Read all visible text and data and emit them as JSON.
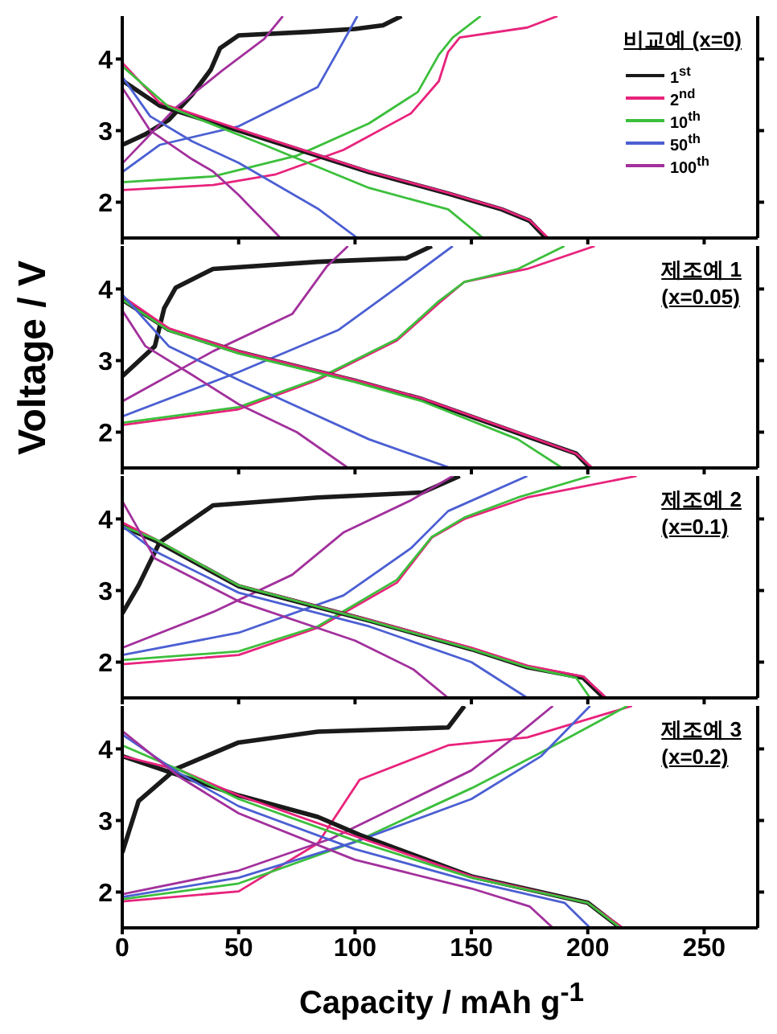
{
  "chart_data": [
    {
      "type": "line",
      "title": "비교예 (x=0)",
      "xlim": [
        0,
        273
      ],
      "xticks": [
        0,
        50,
        100,
        150,
        200,
        250
      ],
      "ylim": [
        1.5,
        4.6
      ],
      "yticks": [
        2,
        3,
        4
      ],
      "tick_labels": "y",
      "legend": "top right",
      "series": [
        {
          "name": "1$^{st}$",
          "color": "#1a1a1a",
          "x": [
            0,
            10,
            20,
            30,
            38,
            42,
            50,
            80,
            100,
            112,
            120
          ],
          "values": [
            2.8,
            2.95,
            3.15,
            3.5,
            3.85,
            4.15,
            4.33,
            4.38,
            4.42,
            4.47,
            4.6
          ]
        },
        {
          "name": "2$^{nd}$",
          "color": "#e8237c",
          "x": [
            0,
            39,
            66,
            95,
            124,
            136,
            140,
            145,
            174,
            187
          ],
          "values": [
            2.17,
            2.24,
            2.39,
            2.73,
            3.24,
            3.69,
            4.1,
            4.3,
            4.44,
            4.6
          ]
        },
        {
          "name": "10$^{th}$",
          "color": "#3cbf3c",
          "x": [
            0,
            39,
            75,
            106,
            127,
            136,
            142,
            154
          ],
          "values": [
            2.28,
            2.36,
            2.65,
            3.1,
            3.54,
            4.06,
            4.3,
            4.6
          ]
        },
        {
          "name": "50$^{th}$",
          "color": "#4b5fd2",
          "x": [
            0,
            16,
            50,
            84,
            93,
            101
          ],
          "values": [
            2.42,
            2.8,
            3.06,
            3.61,
            4.13,
            4.6
          ]
        },
        {
          "name": "100$^{th}$",
          "color": "#a2309c",
          "x": [
            0,
            23,
            43,
            61,
            69
          ],
          "values": [
            2.54,
            3.32,
            3.84,
            4.28,
            4.6
          ]
        },
        {
          "color": "#1a1a1a",
          "x": [
            0,
            16,
            50,
            106,
            140,
            163,
            175,
            182
          ],
          "values": [
            3.7,
            3.35,
            3.0,
            2.42,
            2.12,
            1.9,
            1.74,
            1.5
          ]
        },
        {
          "color": "#e8237c",
          "x": [
            0,
            16,
            50,
            106,
            140,
            163,
            175,
            183
          ],
          "values": [
            3.95,
            3.39,
            3.02,
            2.43,
            2.13,
            1.91,
            1.75,
            1.5
          ]
        },
        {
          "color": "#3cbf3c",
          "x": [
            0,
            20,
            61,
            106,
            140,
            155
          ],
          "values": [
            3.9,
            3.33,
            2.8,
            2.2,
            1.9,
            1.5
          ]
        },
        {
          "color": "#4b5fd2",
          "x": [
            0,
            12,
            30,
            50,
            84,
            101
          ],
          "values": [
            3.75,
            3.2,
            2.85,
            2.55,
            1.91,
            1.5
          ]
        },
        {
          "color": "#a2309c",
          "x": [
            0,
            12,
            30,
            39,
            50,
            68
          ],
          "values": [
            3.6,
            3.0,
            2.6,
            2.43,
            2.1,
            1.5
          ]
        }
      ]
    },
    {
      "type": "line",
      "title": "제조예 1",
      "subtitle": "(x=0.05)",
      "ylabel": "Voltage / V",
      "xlim": [
        0,
        273
      ],
      "xticks": [
        0,
        50,
        100,
        150,
        200,
        250
      ],
      "ylim": [
        1.5,
        4.6
      ],
      "yticks": [
        2,
        3,
        4
      ],
      "tick_labels": "y",
      "series": [
        {
          "color": "#1a1a1a",
          "x": [
            0,
            14,
            18,
            23,
            39,
            84,
            122,
            133
          ],
          "values": [
            2.78,
            3.2,
            3.73,
            4.02,
            4.28,
            4.38,
            4.43,
            4.6
          ]
        },
        {
          "color": "#e8237c",
          "x": [
            0,
            50,
            84,
            118,
            136,
            147,
            174,
            203
          ],
          "values": [
            2.1,
            2.32,
            2.73,
            3.28,
            3.8,
            4.1,
            4.28,
            4.6
          ]
        },
        {
          "color": "#3cbf3c",
          "x": [
            0,
            50,
            84,
            118,
            136,
            147,
            170,
            190
          ],
          "values": [
            2.13,
            2.35,
            2.75,
            3.3,
            3.83,
            4.1,
            4.28,
            4.6
          ]
        },
        {
          "color": "#4b5fd2",
          "x": [
            0,
            50,
            93,
            115,
            142
          ],
          "values": [
            2.22,
            2.84,
            3.43,
            3.95,
            4.6
          ]
        },
        {
          "color": "#a2309c",
          "x": [
            0,
            39,
            73,
            88,
            97
          ],
          "values": [
            2.43,
            3.13,
            3.65,
            4.32,
            4.6
          ]
        },
        {
          "color": "#1a1a1a",
          "x": [
            0,
            20,
            50,
            100,
            129,
            174,
            195,
            201
          ],
          "values": [
            3.85,
            3.43,
            3.12,
            2.72,
            2.46,
            1.94,
            1.7,
            1.5
          ]
        },
        {
          "color": "#e8237c",
          "x": [
            0,
            20,
            50,
            100,
            129,
            174,
            195,
            202
          ],
          "values": [
            3.9,
            3.45,
            3.13,
            2.73,
            2.47,
            1.95,
            1.7,
            1.5
          ]
        },
        {
          "color": "#3cbf3c",
          "x": [
            0,
            20,
            50,
            100,
            129,
            170,
            189
          ],
          "values": [
            3.85,
            3.42,
            3.1,
            2.7,
            2.43,
            1.9,
            1.5
          ]
        },
        {
          "color": "#4b5fd2",
          "x": [
            0,
            20,
            50,
            106,
            141
          ],
          "values": [
            3.92,
            3.2,
            2.73,
            1.9,
            1.5
          ]
        },
        {
          "color": "#a2309c",
          "x": [
            0,
            10,
            30,
            50,
            75,
            97
          ],
          "values": [
            3.7,
            3.2,
            2.8,
            2.39,
            2.0,
            1.5
          ]
        }
      ]
    },
    {
      "type": "line",
      "title": "제조예 2",
      "subtitle": "(x=0.1)",
      "xlim": [
        0,
        273
      ],
      "xticks": [
        0,
        50,
        100,
        150,
        200,
        250
      ],
      "ylim": [
        1.5,
        4.6
      ],
      "yticks": [
        2,
        3,
        4
      ],
      "tick_labels": "y",
      "series": [
        {
          "color": "#1a1a1a",
          "x": [
            0,
            7,
            16,
            39,
            84,
            129,
            145
          ],
          "values": [
            2.68,
            3.07,
            3.67,
            4.19,
            4.3,
            4.37,
            4.6
          ]
        },
        {
          "color": "#e8237c",
          "x": [
            0,
            50,
            84,
            118,
            133,
            147,
            174,
            221
          ],
          "values": [
            1.97,
            2.1,
            2.48,
            3.11,
            3.74,
            4.0,
            4.3,
            4.6
          ]
        },
        {
          "color": "#3cbf3c",
          "x": [
            0,
            50,
            84,
            118,
            133,
            147,
            170,
            201
          ],
          "values": [
            2.03,
            2.15,
            2.5,
            3.15,
            3.75,
            4.02,
            4.3,
            4.6
          ]
        },
        {
          "color": "#4b5fd2",
          "x": [
            0,
            50,
            95,
            124,
            140,
            174
          ],
          "values": [
            2.1,
            2.41,
            2.93,
            3.59,
            4.11,
            4.6
          ]
        },
        {
          "color": "#a2309c",
          "x": [
            0,
            39,
            73,
            95,
            124,
            142
          ],
          "values": [
            2.2,
            2.7,
            3.22,
            3.81,
            4.26,
            4.6
          ]
        },
        {
          "color": "#1a1a1a",
          "x": [
            0,
            14,
            50,
            106,
            150,
            174,
            198,
            207
          ],
          "values": [
            3.9,
            3.7,
            3.06,
            2.58,
            2.18,
            1.93,
            1.78,
            1.5
          ]
        },
        {
          "color": "#e8237c",
          "x": [
            0,
            14,
            50,
            106,
            150,
            174,
            198,
            208
          ],
          "values": [
            3.95,
            3.72,
            3.07,
            2.59,
            2.2,
            1.95,
            1.8,
            1.5
          ]
        },
        {
          "color": "#3cbf3c",
          "x": [
            0,
            14,
            50,
            106,
            150,
            174,
            195,
            201
          ],
          "values": [
            3.9,
            3.72,
            3.07,
            2.58,
            2.18,
            1.93,
            1.78,
            1.5
          ]
        },
        {
          "color": "#4b5fd2",
          "x": [
            0,
            14,
            50,
            106,
            150,
            174
          ],
          "values": [
            3.9,
            3.55,
            2.97,
            2.5,
            2.0,
            1.5
          ]
        },
        {
          "color": "#a2309c",
          "x": [
            0,
            14,
            50,
            100,
            125,
            140
          ],
          "values": [
            4.25,
            3.45,
            2.85,
            2.3,
            1.9,
            1.5
          ]
        }
      ]
    },
    {
      "type": "line",
      "title": "제조예 3",
      "subtitle": "(x=0.2)",
      "xlabel": "Capacity / mAh g$^{-1}$",
      "xlim": [
        0,
        273
      ],
      "xticks": [
        0,
        50,
        100,
        150,
        200,
        250
      ],
      "ylim": [
        1.5,
        4.6
      ],
      "yticks": [
        2,
        3,
        4
      ],
      "series": [
        {
          "color": "#1a1a1a",
          "x": [
            0,
            7,
            23,
            50,
            84,
            140,
            147
          ],
          "values": [
            2.55,
            3.27,
            3.72,
            4.09,
            4.24,
            4.3,
            4.6
          ]
        },
        {
          "color": "#e8237c",
          "x": [
            0,
            50,
            84,
            102,
            140,
            174,
            219
          ],
          "values": [
            1.87,
            2.01,
            2.68,
            3.57,
            4.05,
            4.16,
            4.6
          ]
        },
        {
          "color": "#3cbf3c",
          "x": [
            0,
            50,
            100,
            150,
            180,
            217
          ],
          "values": [
            1.9,
            2.12,
            2.7,
            3.45,
            3.95,
            4.6
          ]
        },
        {
          "color": "#4b5fd2",
          "x": [
            0,
            50,
            100,
            150,
            180,
            201
          ],
          "values": [
            1.93,
            2.2,
            2.7,
            3.3,
            3.9,
            4.6
          ]
        },
        {
          "color": "#a2309c",
          "x": [
            0,
            50,
            90,
            150,
            170,
            185
          ],
          "values": [
            1.97,
            2.3,
            2.75,
            3.7,
            4.2,
            4.6
          ]
        },
        {
          "color": "#1a1a1a",
          "x": [
            0,
            50,
            84,
            102,
            150,
            200,
            214
          ],
          "values": [
            3.9,
            3.35,
            3.05,
            2.8,
            2.22,
            1.85,
            1.5
          ]
        },
        {
          "color": "#e8237c",
          "x": [
            0,
            25,
            50,
            100,
            150,
            200,
            215
          ],
          "values": [
            3.9,
            3.7,
            3.35,
            2.78,
            2.22,
            1.85,
            1.5
          ]
        },
        {
          "color": "#3cbf3c",
          "x": [
            0,
            25,
            50,
            100,
            150,
            200,
            214
          ],
          "values": [
            4.05,
            3.7,
            3.3,
            2.72,
            2.2,
            1.85,
            1.5
          ]
        },
        {
          "color": "#4b5fd2",
          "x": [
            0,
            25,
            50,
            100,
            150,
            190,
            201
          ],
          "values": [
            4.2,
            3.65,
            3.2,
            2.6,
            2.15,
            1.85,
            1.5
          ]
        },
        {
          "color": "#a2309c",
          "x": [
            0,
            25,
            50,
            100,
            150,
            175,
            185
          ],
          "values": [
            4.25,
            3.6,
            3.1,
            2.45,
            2.05,
            1.8,
            1.5
          ]
        }
      ]
    }
  ]
}
